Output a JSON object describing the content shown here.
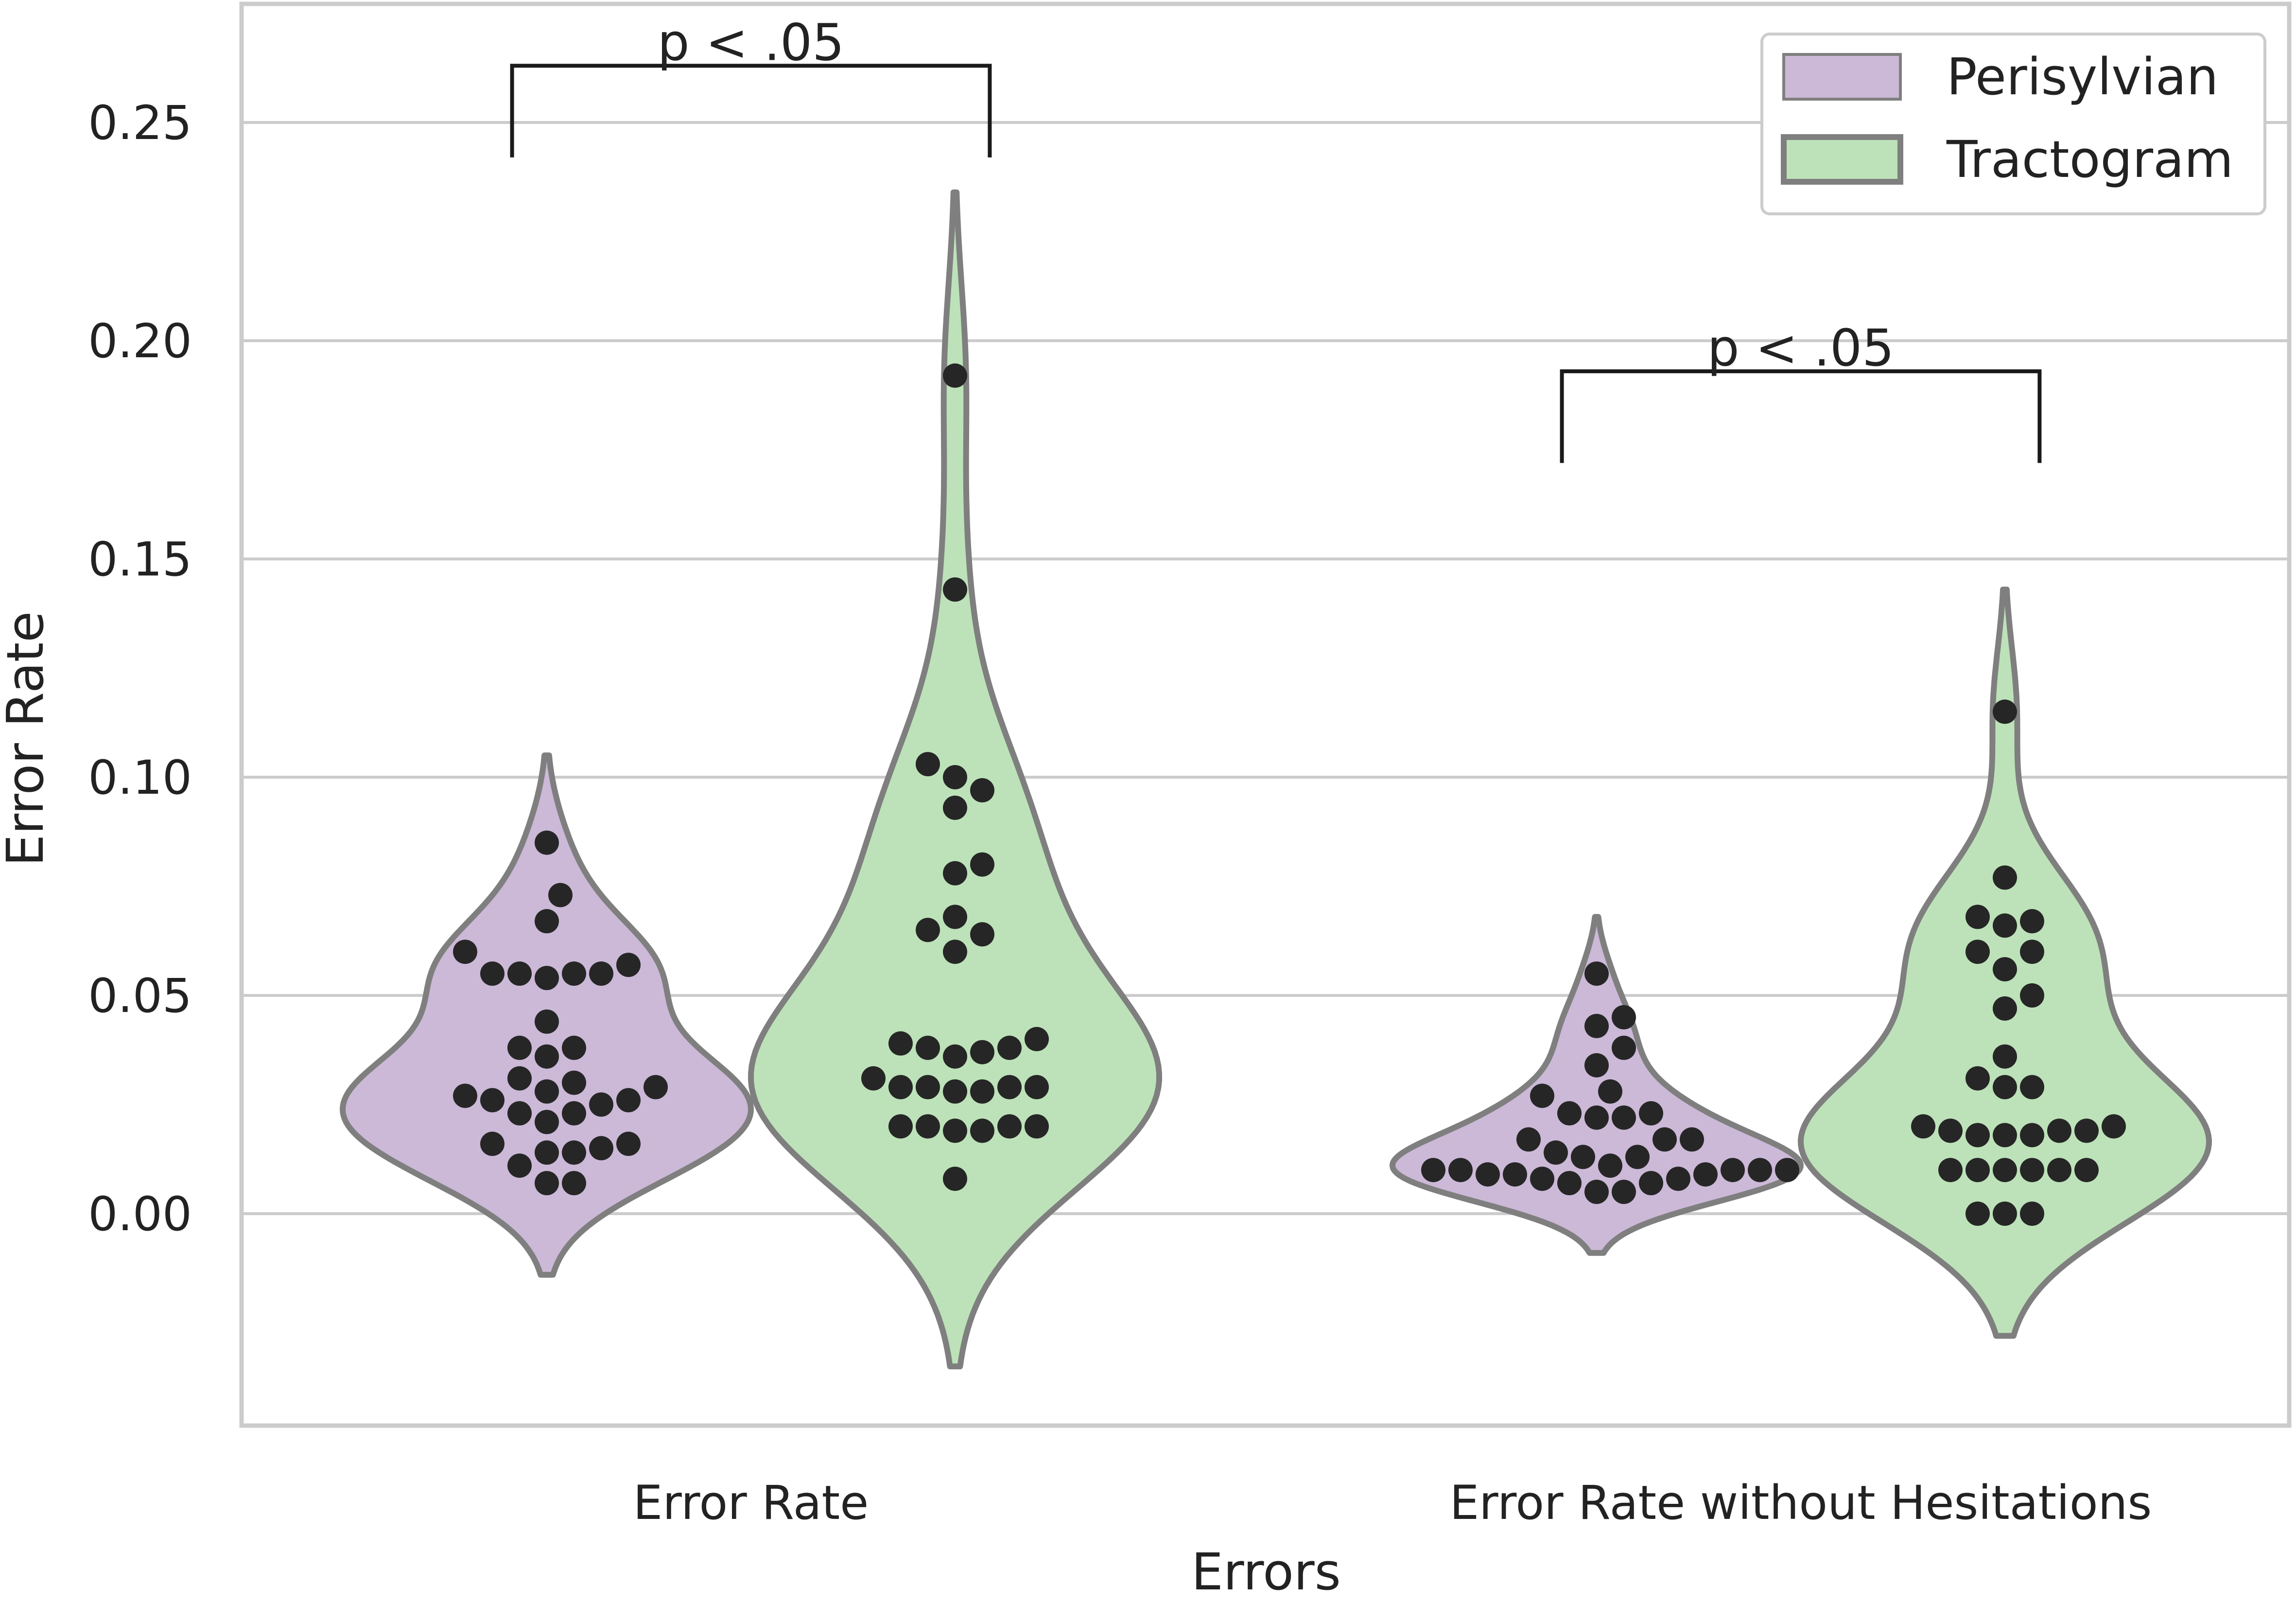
{
  "chart_data": {
    "type": "violin",
    "xlabel": "Errors",
    "ylabel": "Error Rate",
    "categories": [
      "Error Rate",
      "Error Rate without Hesitations"
    ],
    "y_ticks": [
      "0.00",
      "0.05",
      "0.10",
      "0.15",
      "0.20",
      "0.25"
    ],
    "ylim": [
      -0.045,
      0.28
    ],
    "grid": "horizontal",
    "legend_position": "top-right",
    "series": [
      {
        "name": "Perisylvian",
        "color": "#cbb9d7",
        "groups": [
          {
            "category": "Error Rate",
            "kde_range": [
              -0.014,
              0.105
            ],
            "points": [
              0.085,
              0.073,
              0.067,
              0.06,
              0.057,
              0.055,
              0.055,
              0.054,
              0.055,
              0.055,
              0.044,
              0.038,
              0.038,
              0.036,
              0.031,
              0.03,
              0.029,
              0.028,
              0.027,
              0.026,
              0.026,
              0.025,
              0.023,
              0.023,
              0.021,
              0.016,
              0.016,
              0.015,
              0.014,
              0.014,
              0.011,
              0.007,
              0.007
            ]
          },
          {
            "category": "Error Rate without Hesitations",
            "kde_range": [
              -0.009,
              0.068
            ],
            "points": [
              0.055,
              0.045,
              0.043,
              0.038,
              0.034,
              0.028,
              0.027,
              0.023,
              0.023,
              0.022,
              0.022,
              0.017,
              0.017,
              0.017,
              0.014,
              0.013,
              0.013,
              0.011,
              0.01,
              0.01,
              0.01,
              0.01,
              0.01,
              0.009,
              0.009,
              0.009,
              0.008,
              0.008,
              0.007,
              0.007,
              0.005,
              0.005
            ]
          }
        ]
      },
      {
        "name": "Tractogram",
        "color": "#bde2b9",
        "groups": [
          {
            "category": "Error Rate",
            "kde_range": [
              -0.035,
              0.234
            ],
            "points": [
              0.192,
              0.143,
              0.103,
              0.1,
              0.097,
              0.093,
              0.08,
              0.078,
              0.068,
              0.065,
              0.064,
              0.06,
              0.04,
              0.039,
              0.038,
              0.038,
              0.037,
              0.036,
              0.031,
              0.029,
              0.029,
              0.029,
              0.029,
              0.028,
              0.028,
              0.02,
              0.02,
              0.019,
              0.019,
              0.02,
              0.02,
              0.008
            ]
          },
          {
            "category": "Error Rate without Hesitations",
            "kde_range": [
              -0.028,
              0.143
            ],
            "points": [
              0.115,
              0.077,
              0.068,
              0.067,
              0.066,
              0.06,
              0.06,
              0.056,
              0.05,
              0.047,
              0.036,
              0.031,
              0.029,
              0.029,
              0.02,
              0.02,
              0.019,
              0.019,
              0.019,
              0.018,
              0.018,
              0.018,
              0.01,
              0.01,
              0.01,
              0.01,
              0.01,
              0.01,
              0.0,
              0.0,
              0.0
            ]
          }
        ]
      }
    ],
    "annotations": [
      {
        "text": "p < .05",
        "group": "Error Rate",
        "bracket_top": 0.263,
        "leg_bottom": 0.242
      },
      {
        "text": "p < .05",
        "group": "Error Rate without Hesitations",
        "bracket_top": 0.193,
        "leg_bottom": 0.172
      }
    ]
  }
}
